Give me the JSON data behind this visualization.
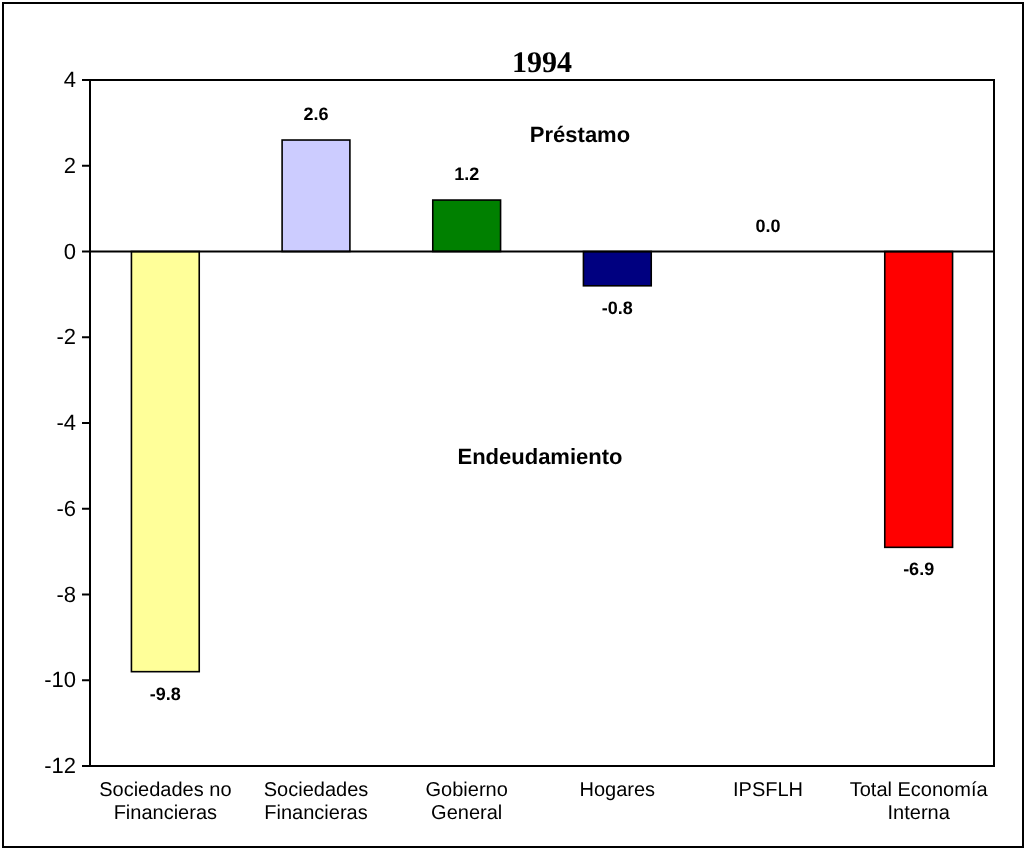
{
  "chart_data": {
    "type": "bar",
    "title": "1994",
    "categories": [
      "Sociedades no Financieras",
      "Sociedades Financieras",
      "Gobierno General",
      "Hogares",
      "IPSFLH",
      "Total Economía Interna"
    ],
    "values": [
      -9.8,
      2.6,
      1.2,
      -0.8,
      0.0,
      -6.9
    ],
    "colors": [
      "#ffff99",
      "#ccccff",
      "#008000",
      "#000080",
      "#808080",
      "#ff0000"
    ],
    "value_labels": [
      "-9.8",
      "2.6",
      "1.2",
      "-0.8",
      "0.0",
      "-6.9"
    ],
    "ylim": [
      -12,
      4
    ],
    "yticks": [
      -12,
      -10,
      -8,
      -6,
      -4,
      -2,
      0,
      2,
      4
    ],
    "annotations": [
      "Préstamo",
      "Endeudamiento"
    ]
  }
}
